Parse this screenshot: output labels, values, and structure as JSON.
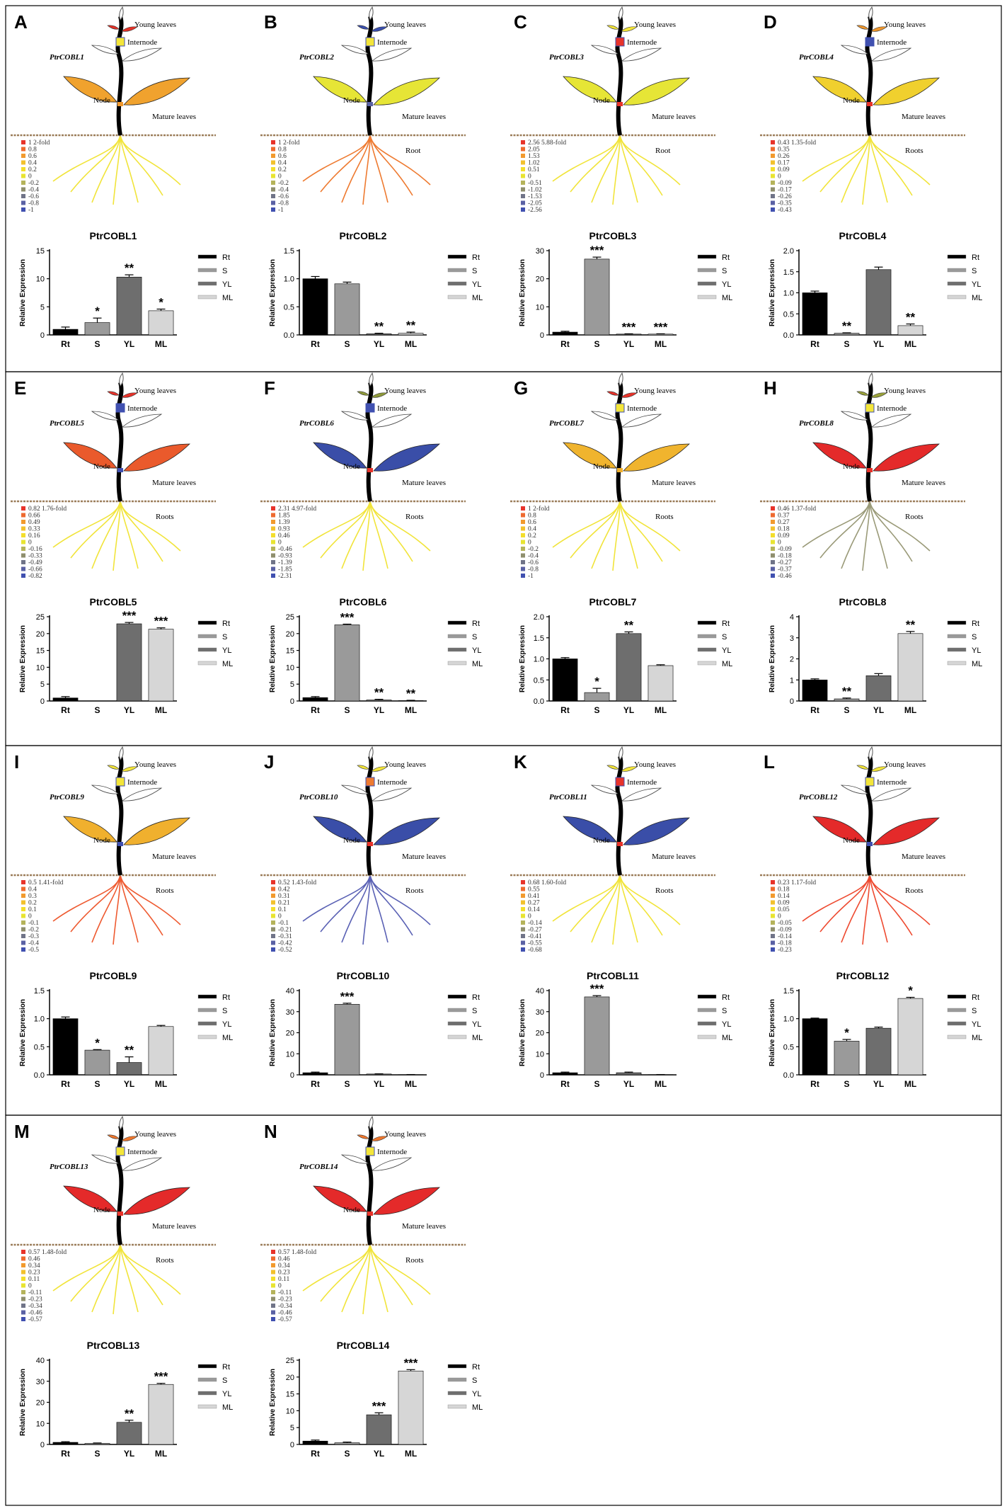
{
  "figure": {
    "organ_labels": {
      "young": "Young leaves",
      "internode": "Internode",
      "node": "Node",
      "mature": "Mature leaves"
    },
    "legend_codes": [
      "Rt",
      "S",
      "YL",
      "ML"
    ],
    "legend_colors": [
      "#000000",
      "#9a9a9a",
      "#6e6e6e",
      "#d6d6d6"
    ],
    "scale_colors": [
      "#e8332a",
      "#ee6a2f",
      "#f29a2e",
      "#f2c12d",
      "#f3de2c",
      "#e8e431",
      "#b5b35a",
      "#8f8f6e",
      "#707488",
      "#5a61a4",
      "#4050b0"
    ]
  },
  "panels": [
    {
      "letter": "A",
      "plant_name": "PtrCOBL1",
      "root_label": "",
      "root_color": "#f1e43a",
      "scale": [
        "1  2-fold",
        "0.8",
        "0.6",
        "0.4",
        "0.2",
        "0",
        "-0.2",
        "-0.4",
        "-0.6",
        "-0.8",
        "-1"
      ],
      "colors": {
        "young": "#e53228",
        "internode": "#f3e53a",
        "node": "#f0982e",
        "mature": "#f0a22e",
        "mature_r": "#f0a22e"
      }
    },
    {
      "letter": "B",
      "plant_name": "PtrCOBL2",
      "root_label": "Root",
      "root_color": "#ee7a30",
      "scale": [
        "1  2-fold",
        "0.8",
        "0.6",
        "0.4",
        "0.2",
        "0",
        "-0.2",
        "-0.4",
        "-0.6",
        "-0.8",
        "-1"
      ],
      "colors": {
        "young": "#3b4fae",
        "internode": "#f3e53a",
        "node": "#5a61a4",
        "mature": "#e6e536",
        "mature_r": "#e6e536"
      }
    },
    {
      "letter": "C",
      "plant_name": "PtrCOBL3",
      "root_label": "Root",
      "root_color": "#f1e43a",
      "scale": [
        "2.56 5.88-fold",
        "2.05",
        "1.53",
        "1.02",
        "0.51",
        "0",
        "-0.51",
        "-1.02",
        "-1.53",
        "-2.05",
        "-2.56"
      ],
      "colors": {
        "young": "#f3e53a",
        "internode": "#e8332a",
        "node": "#e8332a",
        "mature": "#e6e536",
        "mature_r": "#e6e536"
      }
    },
    {
      "letter": "D",
      "plant_name": "PtrCOBL4",
      "root_label": "Roots",
      "root_color": "#f1e43a",
      "scale": [
        "0.43 1.35-fold",
        "0.35",
        "0.26",
        "0.17",
        "0.09",
        "0",
        "-0.09",
        "-0.17",
        "-0.26",
        "-0.35",
        "-0.43"
      ],
      "colors": {
        "young": "#f0982e",
        "internode": "#4050b0",
        "node": "#e8332a",
        "mature": "#f0d02e",
        "mature_r": "#f0d02e"
      }
    },
    {
      "letter": "E",
      "plant_name": "PtrCOBL5",
      "root_label": "Roots",
      "root_color": "#f1e43a",
      "scale": [
        "0.82 1.76-fold",
        "0.66",
        "0.49",
        "0.33",
        "0.16",
        "0",
        "-0.16",
        "-0.33",
        "-0.49",
        "-0.66",
        "-0.82"
      ],
      "colors": {
        "young": "#e8332a",
        "internode": "#4050b0",
        "node": "#4050b0",
        "mature": "#ea5a2c",
        "mature_r": "#ea5a2c"
      }
    },
    {
      "letter": "F",
      "plant_name": "PtrCOBL6",
      "root_label": "Roots",
      "root_color": "#f1e43a",
      "scale": [
        "2.31 4.97-fold",
        "1.85",
        "1.39",
        "0.93",
        "0.46",
        "0",
        "-0.46",
        "-0.93",
        "-1.39",
        "-1.85",
        "-2.31"
      ],
      "colors": {
        "young": "#8f9a3a",
        "internode": "#4050b0",
        "node": "#e8332a",
        "mature": "#3a4ea8",
        "mature_r": "#3a4ea8"
      }
    },
    {
      "letter": "G",
      "plant_name": "PtrCOBL7",
      "root_label": "Roots",
      "root_color": "#f1e43a",
      "scale": [
        "1  2-fold",
        "0.8",
        "0.6",
        "0.4",
        "0.2",
        "0",
        "-0.2",
        "-0.4",
        "-0.6",
        "-0.8",
        "-1"
      ],
      "colors": {
        "young": "#e8332a",
        "internode": "#f3e53a",
        "node": "#f0b02e",
        "mature": "#f0b42e",
        "mature_r": "#f0b42e"
      }
    },
    {
      "letter": "H",
      "plant_name": "PtrCOBL8",
      "root_label": "Roots",
      "root_color": "#9a9a78",
      "scale": [
        "0.46 1.37-fold",
        "0.37",
        "0.27",
        "0.18",
        "0.09",
        "0",
        "-0.09",
        "-0.18",
        "-0.27",
        "-0.37",
        "-0.46"
      ],
      "colors": {
        "young": "#9aa23a",
        "internode": "#f3e53a",
        "node": "#e8332a",
        "mature": "#e42a2a",
        "mature_r": "#e42a2a"
      }
    },
    {
      "letter": "I",
      "plant_name": "PtrCOBL9",
      "root_label": "Roots",
      "root_color": "#ee5a30",
      "scale": [
        "0.5 1.41-fold",
        "0.4",
        "0.3",
        "0.2",
        "0.1",
        "0",
        "-0.1",
        "-0.2",
        "-0.3",
        "-0.4",
        "-0.5"
      ],
      "colors": {
        "young": "#f3e53a",
        "internode": "#f3e53a",
        "node": "#4050b0",
        "mature": "#f0b02e",
        "mature_r": "#f0b02e"
      }
    },
    {
      "letter": "J",
      "plant_name": "PtrCOBL10",
      "root_label": "Roots",
      "root_color": "#5a61b4",
      "scale": [
        "0.52 1.43-fold",
        "0.42",
        "0.31",
        "0.21",
        "0.1",
        "0",
        "-0.1",
        "-0.21",
        "-0.31",
        "-0.42",
        "-0.52"
      ],
      "colors": {
        "young": "#f3e53a",
        "internode": "#ee7a30",
        "node": "#e8332a",
        "mature": "#3a4ea8",
        "mature_r": "#3a4ea8"
      }
    },
    {
      "letter": "K",
      "plant_name": "PtrCOBL11",
      "root_label": "Roots",
      "root_color": "#f1e43a",
      "scale": [
        "0.68 1.60-fold",
        "0.55",
        "0.41",
        "0.27",
        "0.14",
        "0",
        "-0.14",
        "-0.27",
        "-0.41",
        "-0.55",
        "-0.68"
      ],
      "colors": {
        "young": "#f3e53a",
        "internode": "#e8332a",
        "node": "#e8332a",
        "mature": "#3a4ea8",
        "mature_r": "#3a4ea8"
      }
    },
    {
      "letter": "L",
      "plant_name": "PtrCOBL12",
      "root_label": "Roots",
      "root_color": "#ee4a30",
      "scale": [
        "0.23 1.17-fold",
        "0.18",
        "0.14",
        "0.09",
        "0.05",
        "0",
        "-0.05",
        "-0.09",
        "-0.14",
        "-0.18",
        "-0.23"
      ],
      "colors": {
        "young": "#f3e53a",
        "internode": "#f3e53a",
        "node": "#4050b0",
        "mature": "#e42a2a",
        "mature_r": "#e42a2a"
      }
    },
    {
      "letter": "M",
      "plant_name": "PtrCOBL13",
      "root_label": "Roots",
      "root_color": "#f1e43a",
      "scale": [
        "0.57 1.48-fold",
        "0.46",
        "0.34",
        "0.23",
        "0.11",
        "0",
        "-0.11",
        "-0.23",
        "-0.34",
        "-0.46",
        "-0.57"
      ],
      "colors": {
        "young": "#f0782e",
        "internode": "#f3e53a",
        "node": "#e8332a",
        "mature": "#e42a2a",
        "mature_r": "#e42a2a"
      }
    },
    {
      "letter": "N",
      "plant_name": "PtrCOBL14",
      "root_label": "Roots",
      "root_color": "#f1e43a",
      "scale": [
        "0.57 1.48-fold",
        "0.46",
        "0.34",
        "0.23",
        "0.11",
        "0",
        "-0.11",
        "-0.23",
        "-0.34",
        "-0.46",
        "-0.57"
      ],
      "colors": {
        "young": "#f0782e",
        "internode": "#f3e53a",
        "node": "#e8332a",
        "mature": "#e42a2a",
        "mature_r": "#e42a2a"
      }
    }
  ],
  "chart_data": [
    {
      "type": "bar",
      "title": "PtrCOBL1",
      "categories": [
        "Rt",
        "S",
        "YL",
        "ML"
      ],
      "values": [
        1.0,
        2.2,
        10.3,
        4.3
      ],
      "errors": [
        0.4,
        0.8,
        0.4,
        0.3
      ],
      "significance": [
        "",
        "*",
        "**",
        "*"
      ],
      "ylabel": "Relative Expression",
      "ylim": [
        0,
        15
      ],
      "yticks": [
        0,
        5,
        10,
        15
      ],
      "tick_labels": [
        "0",
        "5",
        "10",
        "15"
      ]
    },
    {
      "type": "bar",
      "title": "PtrCOBL2",
      "categories": [
        "Rt",
        "S",
        "YL",
        "ML"
      ],
      "values": [
        1.0,
        0.91,
        0.02,
        0.03
      ],
      "errors": [
        0.04,
        0.03,
        0.01,
        0.02
      ],
      "significance": [
        "",
        "",
        "**",
        "**"
      ],
      "ylabel": "Relative Expression",
      "ylim": [
        0,
        1.5
      ],
      "yticks": [
        0,
        0.5,
        1.0,
        1.5
      ],
      "tick_labels": [
        "0.0",
        "0.5",
        "1.0",
        "1.5"
      ]
    },
    {
      "type": "bar",
      "title": "PtrCOBL3",
      "categories": [
        "Rt",
        "S",
        "YL",
        "ML"
      ],
      "values": [
        1.0,
        27.0,
        0.3,
        0.3
      ],
      "errors": [
        0.3,
        0.7,
        0.1,
        0.1
      ],
      "significance": [
        "",
        "***",
        "***",
        "***"
      ],
      "ylabel": "Relative Expression",
      "ylim": [
        0,
        30
      ],
      "yticks": [
        0,
        10,
        20,
        30
      ],
      "tick_labels": [
        "0",
        "10",
        "20",
        "30"
      ]
    },
    {
      "type": "bar",
      "title": "PtrCOBL4",
      "categories": [
        "Rt",
        "S",
        "YL",
        "ML"
      ],
      "values": [
        1.0,
        0.04,
        1.55,
        0.22
      ],
      "errors": [
        0.04,
        0.01,
        0.06,
        0.04
      ],
      "significance": [
        "",
        "**",
        "",
        "**"
      ],
      "ylabel": "Relative Expression",
      "ylim": [
        0,
        2.0
      ],
      "yticks": [
        0,
        0.5,
        1.0,
        1.5,
        2.0
      ],
      "tick_labels": [
        "0.0",
        "0.5",
        "1.0",
        "1.5",
        "2.0"
      ]
    },
    {
      "type": "bar",
      "title": "PtrCOBL5",
      "categories": [
        "Rt",
        "S",
        "YL",
        "ML"
      ],
      "values": [
        0.9,
        0.0,
        22.9,
        21.3
      ],
      "errors": [
        0.4,
        0.0,
        0.4,
        0.4
      ],
      "significance": [
        "",
        "",
        "***",
        "***"
      ],
      "ylabel": "Relative Expression",
      "ylim": [
        0,
        25
      ],
      "yticks": [
        0,
        5,
        10,
        15,
        20,
        25
      ],
      "tick_labels": [
        "0",
        "5",
        "10",
        "15",
        "20",
        "25"
      ]
    },
    {
      "type": "bar",
      "title": "PtrCOBL6",
      "categories": [
        "Rt",
        "S",
        "YL",
        "ML"
      ],
      "values": [
        1.0,
        22.6,
        0.3,
        0.1
      ],
      "errors": [
        0.3,
        0.2,
        0.2,
        0.1
      ],
      "significance": [
        "",
        "***",
        "**",
        "**"
      ],
      "ylabel": "Relative Expression",
      "ylim": [
        0,
        25
      ],
      "yticks": [
        0,
        5,
        10,
        15,
        20,
        25
      ],
      "tick_labels": [
        "0",
        "5",
        "10",
        "15",
        "20",
        "25"
      ]
    },
    {
      "type": "bar",
      "title": "PtrCOBL7",
      "categories": [
        "Rt",
        "S",
        "YL",
        "ML"
      ],
      "values": [
        1.0,
        0.2,
        1.6,
        0.84
      ],
      "errors": [
        0.03,
        0.1,
        0.04,
        0.02
      ],
      "significance": [
        "",
        "*",
        "**",
        ""
      ],
      "ylabel": "Relative Expression",
      "ylim": [
        0,
        2.0
      ],
      "yticks": [
        0,
        0.5,
        1.0,
        1.5,
        2.0
      ],
      "tick_labels": [
        "0.0",
        "0.5",
        "1.0",
        "1.5",
        "2.0"
      ]
    },
    {
      "type": "bar",
      "title": "PtrCOBL8",
      "categories": [
        "Rt",
        "S",
        "YL",
        "ML"
      ],
      "values": [
        1.0,
        0.1,
        1.2,
        3.2
      ],
      "errors": [
        0.05,
        0.04,
        0.1,
        0.1
      ],
      "significance": [
        "",
        "**",
        "",
        "**"
      ],
      "ylabel": "Relative Expression",
      "ylim": [
        0,
        4
      ],
      "yticks": [
        0,
        1,
        2,
        3,
        4
      ],
      "tick_labels": [
        "0",
        "1",
        "2",
        "3",
        "4"
      ]
    },
    {
      "type": "bar",
      "title": "PtrCOBL9",
      "categories": [
        "Rt",
        "S",
        "YL",
        "ML"
      ],
      "values": [
        1.0,
        0.44,
        0.22,
        0.86
      ],
      "errors": [
        0.03,
        0.01,
        0.1,
        0.02
      ],
      "significance": [
        "",
        "*",
        "**",
        ""
      ],
      "ylabel": "Relative Expression",
      "ylim": [
        0,
        1.5
      ],
      "yticks": [
        0,
        0.5,
        1.0,
        1.5
      ],
      "tick_labels": [
        "0.0",
        "0.5",
        "1.0",
        "1.5"
      ]
    },
    {
      "type": "bar",
      "title": "PtrCOBL10",
      "categories": [
        "Rt",
        "S",
        "YL",
        "ML"
      ],
      "values": [
        1.0,
        33.5,
        0.4,
        0.1
      ],
      "errors": [
        0.3,
        0.5,
        0.1,
        0.05
      ],
      "significance": [
        "",
        "***",
        "",
        ""
      ],
      "ylabel": "Relative Expression",
      "ylim": [
        0,
        40
      ],
      "yticks": [
        0,
        10,
        20,
        30,
        40
      ],
      "tick_labels": [
        "0",
        "10",
        "20",
        "30",
        "40"
      ]
    },
    {
      "type": "bar",
      "title": "PtrCOBL11",
      "categories": [
        "Rt",
        "S",
        "YL",
        "ML"
      ],
      "values": [
        1.0,
        37.0,
        1.0,
        0.1
      ],
      "errors": [
        0.3,
        0.6,
        0.3,
        0.05
      ],
      "significance": [
        "",
        "***",
        "",
        ""
      ],
      "ylabel": "Relative Expression",
      "ylim": [
        0,
        40
      ],
      "yticks": [
        0,
        10,
        20,
        30,
        40
      ],
      "tick_labels": [
        "0",
        "10",
        "20",
        "30",
        "40"
      ]
    },
    {
      "type": "bar",
      "title": "PtrCOBL12",
      "categories": [
        "Rt",
        "S",
        "YL",
        "ML"
      ],
      "values": [
        1.0,
        0.6,
        0.83,
        1.36
      ],
      "errors": [
        0.01,
        0.03,
        0.02,
        0.02
      ],
      "significance": [
        "",
        "*",
        "",
        "*"
      ],
      "ylabel": "Relative Expression",
      "ylim": [
        0,
        1.5
      ],
      "yticks": [
        0,
        0.5,
        1.0,
        1.5
      ],
      "tick_labels": [
        "0.0",
        "0.5",
        "1.0",
        "1.5"
      ]
    },
    {
      "type": "bar",
      "title": "PtrCOBL13",
      "categories": [
        "Rt",
        "S",
        "YL",
        "ML"
      ],
      "values": [
        1.0,
        0.5,
        10.5,
        28.5
      ],
      "errors": [
        0.3,
        0.2,
        1.0,
        0.5
      ],
      "significance": [
        "",
        "",
        "**",
        "***"
      ],
      "ylabel": "Relative Expression",
      "ylim": [
        0,
        40
      ],
      "yticks": [
        0,
        10,
        20,
        30,
        40
      ],
      "tick_labels": [
        "0",
        "10",
        "20",
        "30",
        "40"
      ]
    },
    {
      "type": "bar",
      "title": "PtrCOBL14",
      "categories": [
        "Rt",
        "S",
        "YL",
        "ML"
      ],
      "values": [
        1.0,
        0.5,
        8.8,
        21.8
      ],
      "errors": [
        0.3,
        0.2,
        0.6,
        0.4
      ],
      "significance": [
        "",
        "",
        "***",
        "***"
      ],
      "ylabel": "Relative Expression",
      "ylim": [
        0,
        25
      ],
      "yticks": [
        0,
        5,
        10,
        15,
        20,
        25
      ],
      "tick_labels": [
        "0",
        "5",
        "10",
        "15",
        "20",
        "25"
      ]
    }
  ]
}
